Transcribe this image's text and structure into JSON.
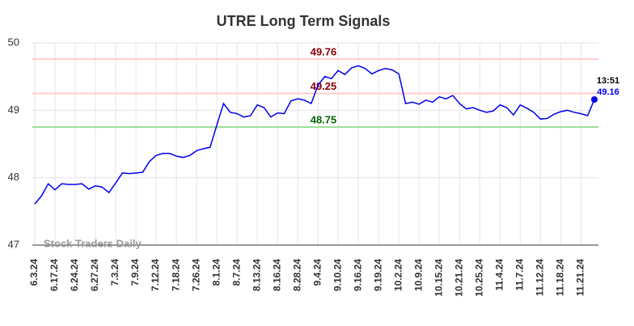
{
  "chart_data": {
    "type": "line",
    "title": "UTRE Long Term Signals",
    "categories": [
      "6.3.24",
      null,
      null,
      "6.17.24",
      null,
      null,
      "6.24.24",
      null,
      null,
      "6.27.24",
      null,
      null,
      "7.3.24",
      null,
      null,
      "7.9.24",
      null,
      null,
      "7.12.24",
      null,
      null,
      "7.18.24",
      null,
      null,
      "7.26.24",
      null,
      null,
      "8.1.24",
      null,
      null,
      "8.7.24",
      null,
      null,
      "8.13.24",
      null,
      null,
      "8.16.24",
      null,
      null,
      "8.28.24",
      null,
      null,
      "9.4.24",
      null,
      null,
      "9.10.24",
      null,
      null,
      "9.16.24",
      null,
      null,
      "9.19.24",
      null,
      null,
      "10.2.24",
      null,
      null,
      "10.9.24",
      null,
      null,
      "10.15.24",
      null,
      null,
      "10.21.24",
      null,
      null,
      "10.25.24",
      null,
      null,
      "11.4.24",
      null,
      null,
      "11.7.24",
      null,
      null,
      "11.12.24",
      null,
      null,
      "11.18.24",
      null,
      null,
      "11.21.24",
      null,
      null
    ],
    "values": [
      47.61,
      47.73,
      47.91,
      47.82,
      47.91,
      47.9,
      47.9,
      47.91,
      47.83,
      47.88,
      47.86,
      47.78,
      47.92,
      48.07,
      48.06,
      48.07,
      48.08,
      48.24,
      48.33,
      48.36,
      48.36,
      48.32,
      48.3,
      48.33,
      48.4,
      48.43,
      48.45,
      48.78,
      49.1,
      48.97,
      48.95,
      48.9,
      48.92,
      49.08,
      49.04,
      48.9,
      48.96,
      48.95,
      49.14,
      49.17,
      49.15,
      49.1,
      49.37,
      49.5,
      49.47,
      49.59,
      49.53,
      49.63,
      49.66,
      49.62,
      49.54,
      49.59,
      49.62,
      49.6,
      49.54,
      49.1,
      49.12,
      49.09,
      49.15,
      49.12,
      49.2,
      49.17,
      49.22,
      49.1,
      49.02,
      49.04,
      49.0,
      48.97,
      48.99,
      49.08,
      49.04,
      48.93,
      49.08,
      49.03,
      48.97,
      48.87,
      48.88,
      48.94,
      48.98,
      49.0,
      48.97,
      48.95,
      48.92,
      49.16
    ],
    "color": "#0000ee",
    "last_time": "13:51",
    "hlines": [
      {
        "value": 49.76,
        "color": "#ffcccc",
        "label_color": "#8b0000"
      },
      {
        "value": 49.25,
        "color": "#ffcccc",
        "label_color": "#8b0000"
      },
      {
        "value": 48.75,
        "color": "#99dd99",
        "label_color": "#006400"
      }
    ],
    "watermark": "Stock Traders Daily",
    "ylim": [
      47,
      50
    ],
    "yticks": [
      47,
      48,
      49,
      50
    ],
    "grid": true
  }
}
